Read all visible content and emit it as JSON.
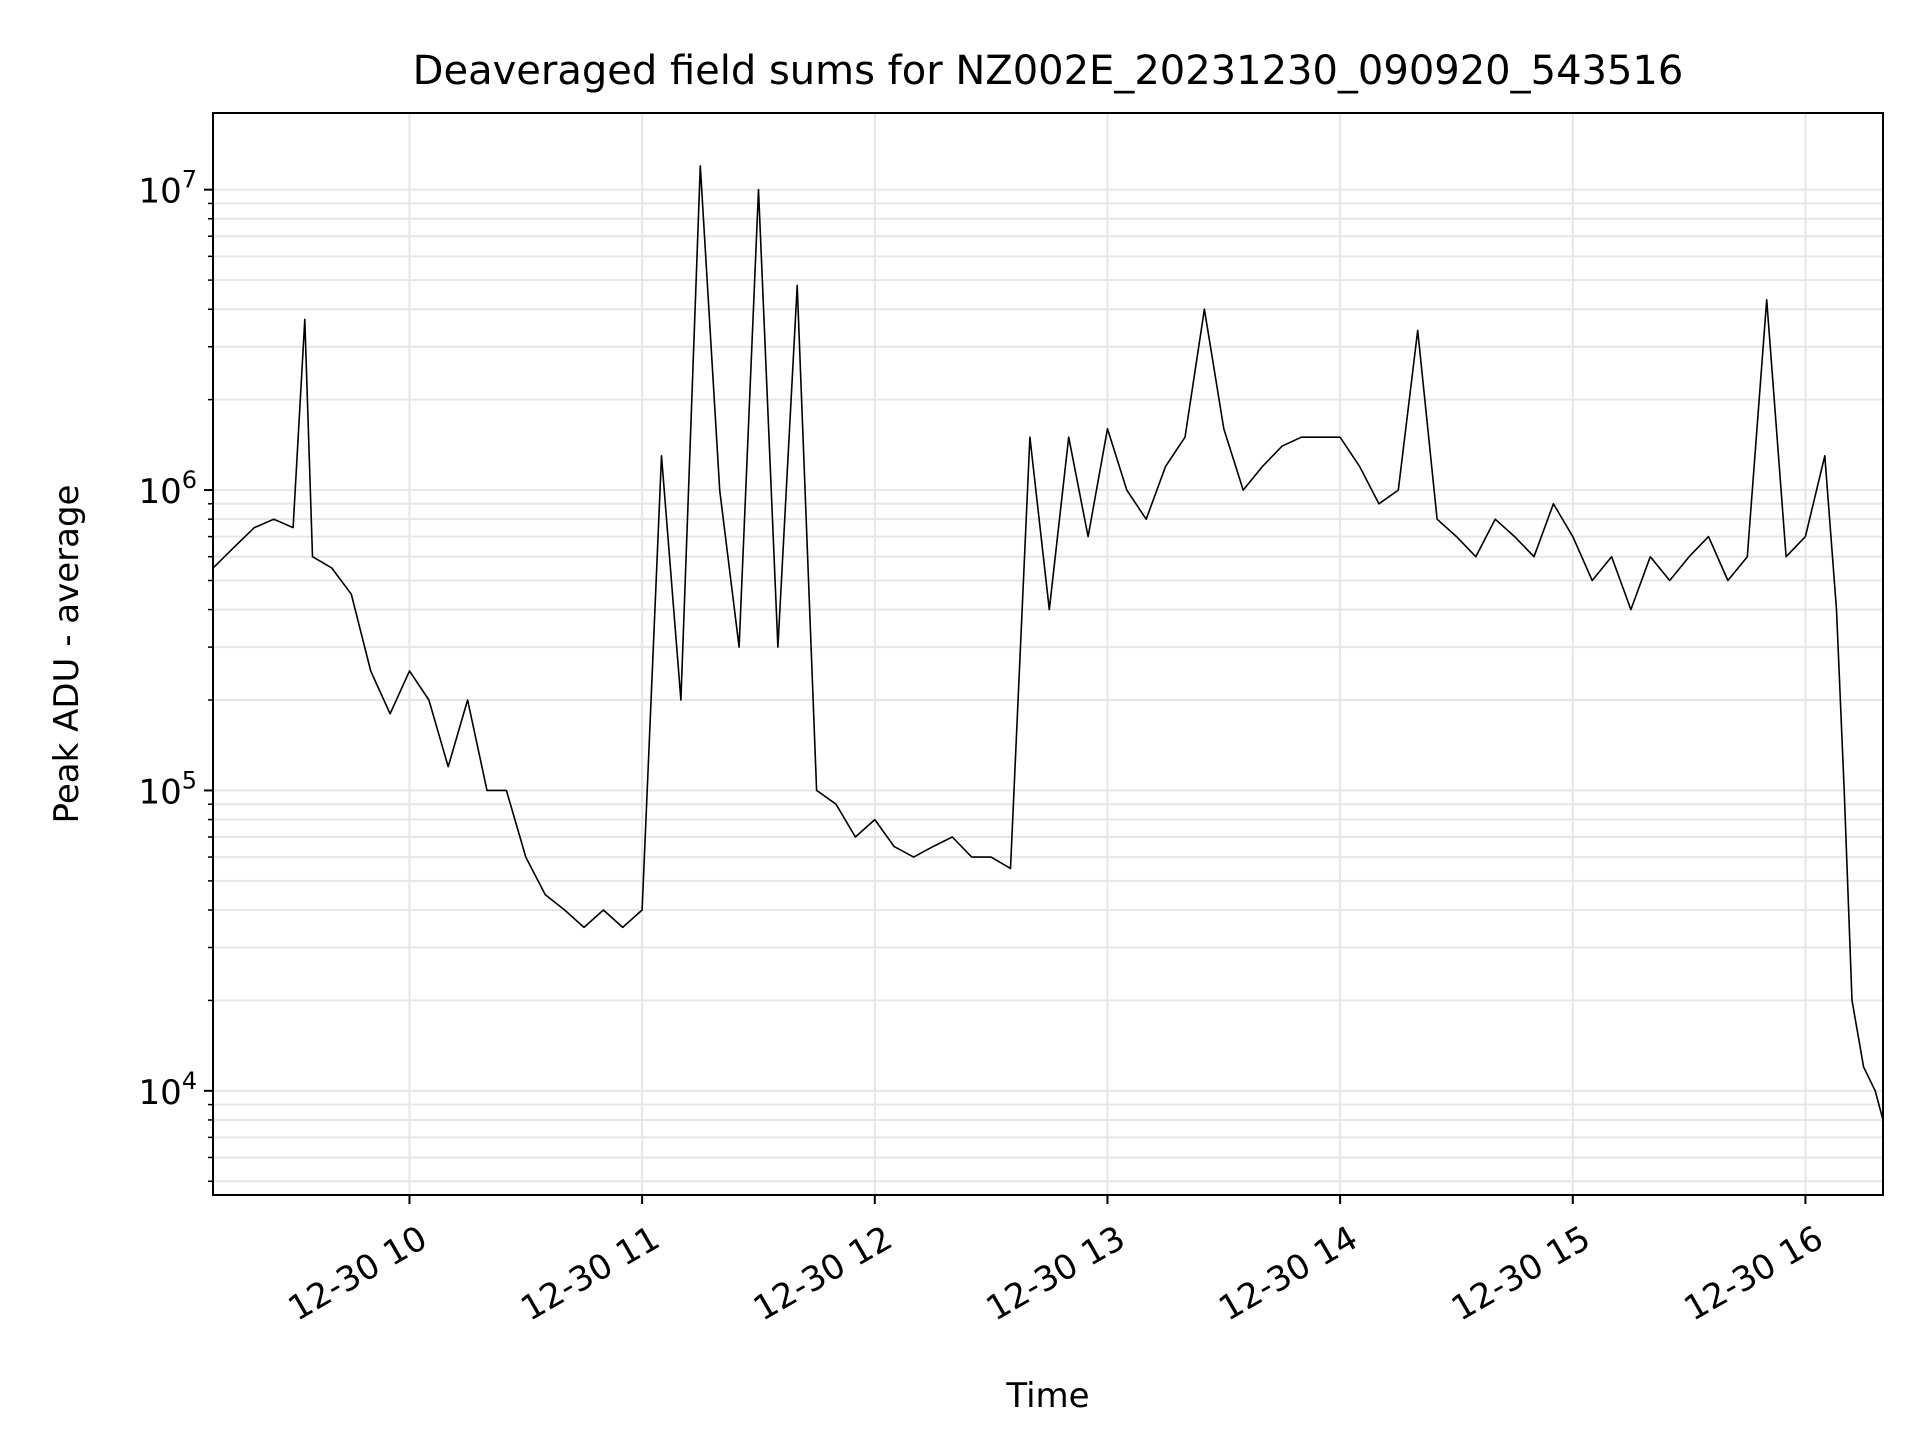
{
  "chart_data": {
    "type": "line",
    "title": "Deaveraged field sums for NZ002E_20231230_090920_543516",
    "xlabel": "Time",
    "ylabel": "Peak ADU - average",
    "xlim": [
      "2023-12-30 09:09:20",
      "2023-12-30 16:20:00"
    ],
    "ylim": [
      4500,
      18000000
    ],
    "y_scale": "log",
    "grid": true,
    "x_ticks": [
      {
        "t": "2023-12-30 10:00",
        "label": "12-30 10"
      },
      {
        "t": "2023-12-30 11:00",
        "label": "12-30 11"
      },
      {
        "t": "2023-12-30 12:00",
        "label": "12-30 12"
      },
      {
        "t": "2023-12-30 13:00",
        "label": "12-30 13"
      },
      {
        "t": "2023-12-30 14:00",
        "label": "12-30 14"
      },
      {
        "t": "2023-12-30 15:00",
        "label": "12-30 15"
      },
      {
        "t": "2023-12-30 16:00",
        "label": "12-30 16"
      }
    ],
    "y_ticks": [
      {
        "v": 10000,
        "base": "10",
        "exp": "4"
      },
      {
        "v": 100000,
        "base": "10",
        "exp": "5"
      },
      {
        "v": 1000000,
        "base": "10",
        "exp": "6"
      },
      {
        "v": 10000000,
        "base": "10",
        "exp": "7"
      }
    ],
    "series": [
      {
        "color": "#000000",
        "x": [
          "2023-12-30 09:09:20",
          "2023-12-30 09:15:00",
          "2023-12-30 09:20:00",
          "2023-12-30 09:25:00",
          "2023-12-30 09:30:00",
          "2023-12-30 09:33:00",
          "2023-12-30 09:35:00",
          "2023-12-30 09:40:00",
          "2023-12-30 09:45:00",
          "2023-12-30 09:50:00",
          "2023-12-30 09:55:00",
          "2023-12-30 10:00:00",
          "2023-12-30 10:05:00",
          "2023-12-30 10:10:00",
          "2023-12-30 10:15:00",
          "2023-12-30 10:20:00",
          "2023-12-30 10:25:00",
          "2023-12-30 10:30:00",
          "2023-12-30 10:35:00",
          "2023-12-30 10:40:00",
          "2023-12-30 10:45:00",
          "2023-12-30 10:50:00",
          "2023-12-30 10:55:00",
          "2023-12-30 11:00:00",
          "2023-12-30 11:05:00",
          "2023-12-30 11:10:00",
          "2023-12-30 11:15:00",
          "2023-12-30 11:20:00",
          "2023-12-30 11:25:00",
          "2023-12-30 11:30:00",
          "2023-12-30 11:35:00",
          "2023-12-30 11:40:00",
          "2023-12-30 11:45:00",
          "2023-12-30 11:50:00",
          "2023-12-30 11:55:00",
          "2023-12-30 12:00:00",
          "2023-12-30 12:05:00",
          "2023-12-30 12:10:00",
          "2023-12-30 12:15:00",
          "2023-12-30 12:20:00",
          "2023-12-30 12:25:00",
          "2023-12-30 12:30:00",
          "2023-12-30 12:35:00",
          "2023-12-30 12:40:00",
          "2023-12-30 12:45:00",
          "2023-12-30 12:50:00",
          "2023-12-30 12:55:00",
          "2023-12-30 13:00:00",
          "2023-12-30 13:05:00",
          "2023-12-30 13:10:00",
          "2023-12-30 13:15:00",
          "2023-12-30 13:20:00",
          "2023-12-30 13:25:00",
          "2023-12-30 13:30:00",
          "2023-12-30 13:35:00",
          "2023-12-30 13:40:00",
          "2023-12-30 13:45:00",
          "2023-12-30 13:50:00",
          "2023-12-30 13:55:00",
          "2023-12-30 14:00:00",
          "2023-12-30 14:05:00",
          "2023-12-30 14:10:00",
          "2023-12-30 14:15:00",
          "2023-12-30 14:20:00",
          "2023-12-30 14:25:00",
          "2023-12-30 14:30:00",
          "2023-12-30 14:35:00",
          "2023-12-30 14:40:00",
          "2023-12-30 14:45:00",
          "2023-12-30 14:50:00",
          "2023-12-30 14:55:00",
          "2023-12-30 15:00:00",
          "2023-12-30 15:05:00",
          "2023-12-30 15:10:00",
          "2023-12-30 15:15:00",
          "2023-12-30 15:20:00",
          "2023-12-30 15:25:00",
          "2023-12-30 15:30:00",
          "2023-12-30 15:35:00",
          "2023-12-30 15:40:00",
          "2023-12-30 15:45:00",
          "2023-12-30 15:50:00",
          "2023-12-30 15:55:00",
          "2023-12-30 16:00:00",
          "2023-12-30 16:05:00",
          "2023-12-30 16:08:00",
          "2023-12-30 16:10:00",
          "2023-12-30 16:12:00",
          "2023-12-30 16:15:00",
          "2023-12-30 16:18:00",
          "2023-12-30 16:20:00"
        ],
        "y": [
          550000,
          650000,
          750000,
          800000,
          750000,
          3700000,
          600000,
          550000,
          450000,
          250000,
          180000,
          250000,
          200000,
          120000,
          200000,
          100000,
          100000,
          60000,
          45000,
          40000,
          35000,
          40000,
          35000,
          40000,
          1300000,
          200000,
          12000000,
          1000000,
          300000,
          10000000,
          300000,
          4800000,
          100000,
          90000,
          70000,
          80000,
          65000,
          60000,
          65000,
          70000,
          60000,
          60000,
          55000,
          1500000,
          400000,
          1500000,
          700000,
          1600000,
          1000000,
          800000,
          1200000,
          1500000,
          4000000,
          1600000,
          1000000,
          1200000,
          1400000,
          1500000,
          1500000,
          1500000,
          1200000,
          900000,
          1000000,
          3400000,
          800000,
          700000,
          600000,
          800000,
          700000,
          600000,
          900000,
          700000,
          500000,
          600000,
          400000,
          600000,
          500000,
          600000,
          700000,
          500000,
          600000,
          4300000,
          600000,
          700000,
          1300000,
          400000,
          100000,
          20000,
          12000,
          10000,
          8000
        ]
      }
    ]
  }
}
